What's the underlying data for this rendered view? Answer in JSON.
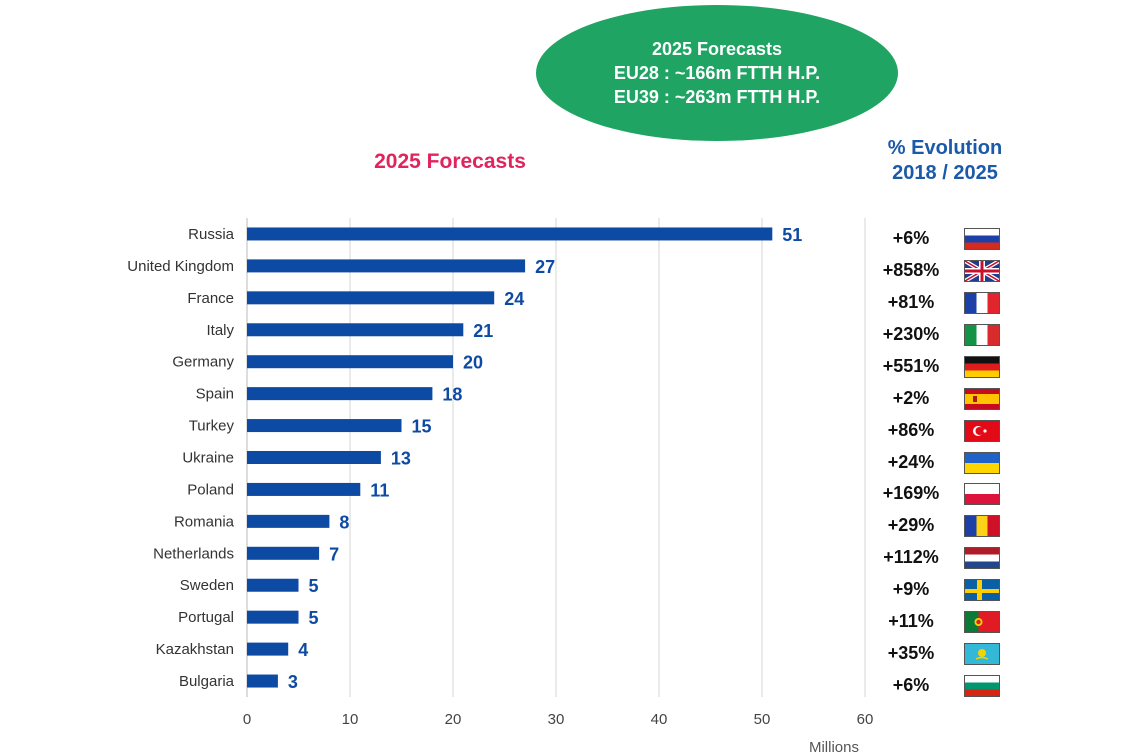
{
  "badge": {
    "line1": "2025 Forecasts",
    "line2": "EU28 : ~166m FTTH H.P.",
    "line3": "EU39 : ~263m FTTH H.P."
  },
  "evolution": {
    "title_line1": "% Evolution",
    "title_line2": "2018 / 2025"
  },
  "colors": {
    "bar": "#0d4aa3",
    "badge": "#1fa463",
    "title": "#e0245e",
    "evolution_title": "#1b5aa8"
  },
  "chart_data": {
    "type": "bar",
    "orientation": "horizontal",
    "title": "2025 Forecasts",
    "xlabel": "Millions",
    "xlim": [
      0,
      60
    ],
    "xticks": [
      0,
      10,
      20,
      30,
      40,
      50,
      60
    ],
    "grid": true,
    "categories": [
      "Russia",
      "United Kingdom",
      "France",
      "Italy",
      "Germany",
      "Spain",
      "Turkey",
      "Ukraine",
      "Poland",
      "Romania",
      "Netherlands",
      "Sweden",
      "Portugal",
      "Kazakhstan",
      "Bulgaria"
    ],
    "values": [
      51,
      27,
      24,
      21,
      20,
      18,
      15,
      13,
      11,
      8,
      7,
      5,
      5,
      4,
      3
    ],
    "value_labels": [
      "51",
      "27",
      "24",
      "21",
      "20",
      "18",
      "15",
      "13",
      "11",
      "8",
      "7",
      "5",
      "5",
      "4",
      "3"
    ]
  },
  "rows": [
    {
      "pct": "+6%",
      "flag": "russia-flag-icon"
    },
    {
      "pct": "+858%",
      "flag": "uk-flag-icon"
    },
    {
      "pct": "+81%",
      "flag": "france-flag-icon"
    },
    {
      "pct": "+230%",
      "flag": "italy-flag-icon"
    },
    {
      "pct": "+551%",
      "flag": "germany-flag-icon"
    },
    {
      "pct": "+2%",
      "flag": "spain-flag-icon"
    },
    {
      "pct": "+86%",
      "flag": "turkey-flag-icon"
    },
    {
      "pct": "+24%",
      "flag": "ukraine-flag-icon"
    },
    {
      "pct": "+169%",
      "flag": "poland-flag-icon"
    },
    {
      "pct": "+29%",
      "flag": "romania-flag-icon"
    },
    {
      "pct": "+112%",
      "flag": "netherlands-flag-icon"
    },
    {
      "pct": "+9%",
      "flag": "sweden-flag-icon"
    },
    {
      "pct": "+11%",
      "flag": "portugal-flag-icon"
    },
    {
      "pct": "+35%",
      "flag": "kazakhstan-flag-icon"
    },
    {
      "pct": "+6%",
      "flag": "bulgaria-flag-icon"
    }
  ]
}
